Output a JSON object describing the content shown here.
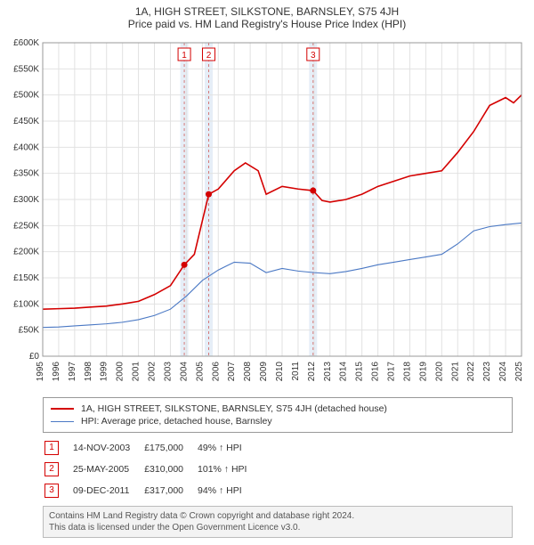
{
  "title_line1": "1A, HIGH STREET, SILKSTONE, BARNSLEY, S75 4JH",
  "title_line2": "Price paid vs. HM Land Registry's House Price Index (HPI)",
  "chart": {
    "type": "line",
    "background_color": "#ffffff",
    "grid_color": "#e2e2e2",
    "axis_font_size": 10,
    "y": {
      "min": 0,
      "max": 600000,
      "step": 50000,
      "format_prefix": "£",
      "format_suffix": "K",
      "labels": [
        "£0",
        "£50K",
        "£100K",
        "£150K",
        "£200K",
        "£250K",
        "£300K",
        "£350K",
        "£400K",
        "£450K",
        "£500K",
        "£550K",
        "£600K"
      ]
    },
    "x": {
      "min": 1995,
      "max": 2025,
      "step": 1,
      "label_rotation": -90,
      "labels": [
        "1995",
        "1996",
        "1997",
        "1998",
        "1999",
        "2000",
        "2001",
        "2002",
        "2003",
        "2004",
        "2005",
        "2006",
        "2007",
        "2008",
        "2009",
        "2010",
        "2011",
        "2012",
        "2013",
        "2014",
        "2015",
        "2016",
        "2017",
        "2018",
        "2019",
        "2020",
        "2021",
        "2022",
        "2023",
        "2024",
        "2025"
      ]
    },
    "series": [
      {
        "name": "1A, HIGH STREET, SILKSTONE, BARNSLEY, S75 4JH (detached house)",
        "color": "#d40000",
        "line_width": 1.6,
        "points": [
          [
            1995,
            90000
          ],
          [
            1996,
            91000
          ],
          [
            1997,
            92000
          ],
          [
            1998,
            94000
          ],
          [
            1999,
            96000
          ],
          [
            2000,
            100000
          ],
          [
            2001,
            105000
          ],
          [
            2002,
            118000
          ],
          [
            2003,
            135000
          ],
          [
            2003.87,
            175000
          ],
          [
            2004.5,
            195000
          ],
          [
            2005.4,
            310000
          ],
          [
            2006,
            320000
          ],
          [
            2007,
            355000
          ],
          [
            2007.7,
            370000
          ],
          [
            2008.5,
            355000
          ],
          [
            2009,
            310000
          ],
          [
            2010,
            325000
          ],
          [
            2011,
            320000
          ],
          [
            2011.94,
            317000
          ],
          [
            2012.5,
            298000
          ],
          [
            2013,
            295000
          ],
          [
            2014,
            300000
          ],
          [
            2015,
            310000
          ],
          [
            2016,
            325000
          ],
          [
            2017,
            335000
          ],
          [
            2018,
            345000
          ],
          [
            2019,
            350000
          ],
          [
            2020,
            355000
          ],
          [
            2021,
            390000
          ],
          [
            2022,
            430000
          ],
          [
            2023,
            480000
          ],
          [
            2024,
            495000
          ],
          [
            2024.5,
            485000
          ],
          [
            2025,
            500000
          ]
        ]
      },
      {
        "name": "HPI: Average price, detached house, Barnsley",
        "color": "#4a78c4",
        "line_width": 1.1,
        "points": [
          [
            1995,
            55000
          ],
          [
            1996,
            56000
          ],
          [
            1997,
            58000
          ],
          [
            1998,
            60000
          ],
          [
            1999,
            62000
          ],
          [
            2000,
            65000
          ],
          [
            2001,
            70000
          ],
          [
            2002,
            78000
          ],
          [
            2003,
            90000
          ],
          [
            2004,
            115000
          ],
          [
            2005,
            145000
          ],
          [
            2006,
            165000
          ],
          [
            2007,
            180000
          ],
          [
            2008,
            178000
          ],
          [
            2009,
            160000
          ],
          [
            2010,
            168000
          ],
          [
            2011,
            163000
          ],
          [
            2012,
            160000
          ],
          [
            2013,
            158000
          ],
          [
            2014,
            162000
          ],
          [
            2015,
            168000
          ],
          [
            2016,
            175000
          ],
          [
            2017,
            180000
          ],
          [
            2018,
            185000
          ],
          [
            2019,
            190000
          ],
          [
            2020,
            195000
          ],
          [
            2021,
            215000
          ],
          [
            2022,
            240000
          ],
          [
            2023,
            248000
          ],
          [
            2024,
            252000
          ],
          [
            2025,
            255000
          ]
        ]
      }
    ],
    "sale_markers": [
      {
        "num": "1",
        "year": 2003.87,
        "price": 175000,
        "band_color": "#e6eef7"
      },
      {
        "num": "2",
        "year": 2005.4,
        "price": 310000,
        "band_color": "#e6eef7"
      },
      {
        "num": "3",
        "year": 2011.94,
        "price": 317000,
        "band_color": "#e6eef7"
      }
    ],
    "marker_point_fill": "#d40000",
    "marker_box_border": "#d40000",
    "marker_box_text": "#d40000",
    "dashed_line_color": "#d47a7a"
  },
  "legend": {
    "s1": "1A, HIGH STREET, SILKSTONE, BARNSLEY, S75 4JH (detached house)",
    "s2": "HPI: Average price, detached house, Barnsley"
  },
  "markers_table": [
    {
      "num": "1",
      "date": "14-NOV-2003",
      "price": "£175,000",
      "hpi": "49% ↑ HPI"
    },
    {
      "num": "2",
      "date": "25-MAY-2005",
      "price": "£310,000",
      "hpi": "101% ↑ HPI"
    },
    {
      "num": "3",
      "date": "09-DEC-2011",
      "price": "£317,000",
      "hpi": "94% ↑ HPI"
    }
  ],
  "footer_line1": "Contains HM Land Registry data © Crown copyright and database right 2024.",
  "footer_line2": "This data is licensed under the Open Government Licence v3.0."
}
